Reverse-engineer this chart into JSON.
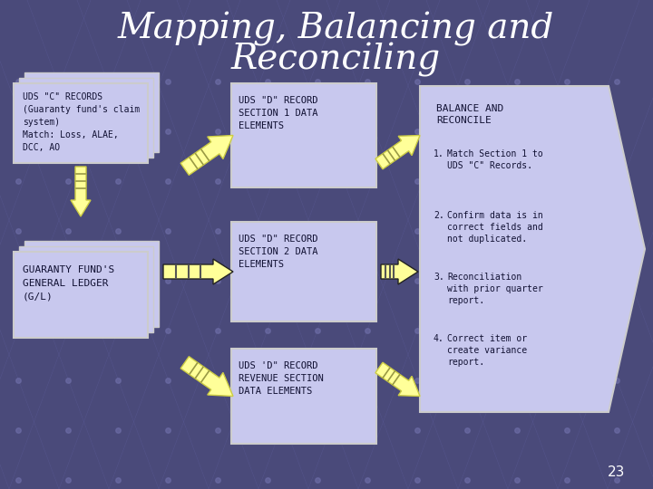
{
  "title_line1": "Mapping, Balancing and",
  "title_line2": "Reconciling",
  "title_color": "#FFFFFF",
  "bg_color": "#4a4a7a",
  "box_fill": "#c8c8ee",
  "box_edge": "#ffffff",
  "page_num": "23",
  "left_box1_lines": [
    "UDS \"C\" RECORDS",
    "(Guaranty fund's claim",
    "system)",
    "Match: Loss, ALAE,",
    "DCC, AO"
  ],
  "left_box2_lines": [
    "GUARANTY FUND'S",
    "GENERAL LEDGER",
    "(G/L)"
  ],
  "mid_box1_lines": [
    "UDS \"D\" RECORD",
    "SECTION 1 DATA",
    "ELEMENTS"
  ],
  "mid_box2_lines": [
    "UDS \"D\" RECORD",
    "SECTION 2 DATA",
    "ELEMENTS"
  ],
  "mid_box3_lines": [
    "UDS 'D\" RECORD",
    "REVENUE SECTION",
    "DATA ELEMENTS"
  ],
  "right_box_title": "BALANCE AND\nRECONCILE",
  "right_box_items": [
    "Match Section 1 to\nUDS \"C\" Records.",
    "Confirm data is in\ncorrect fields and\nnot duplicated.",
    "Reconciliation\nwith prior quarter\nreport.",
    "Correct item or\ncreate variance\nreport."
  ],
  "arrow_yellow": "#ffff99",
  "arrow_yellow_dark": "#cccc44",
  "arrow_black": "#222222",
  "arrow_black_stripe": "#ffffff",
  "text_dark": "#111133"
}
